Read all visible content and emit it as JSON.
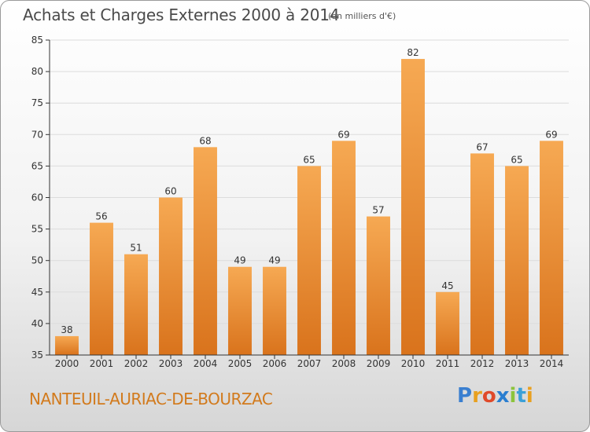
{
  "header": {
    "title": "Achats et Charges Externes 2000 à 2014",
    "unit": "(en milliers d'€)"
  },
  "footer": {
    "place": "NANTEUIL-AURIAC-DE-BOURZAC",
    "logo": {
      "text": "Proxiti",
      "letters": [
        "P",
        "r",
        "o",
        "x",
        "i",
        "t",
        "i"
      ],
      "colors": [
        "#3a7fd0",
        "#e8a020",
        "#e04a2a",
        "#2a7ed0",
        "#8cc43c",
        "#3aa0d8",
        "#e8a020"
      ]
    }
  },
  "colors": {
    "bar_light": "#f6a953",
    "bar_dark": "#d9731c",
    "grid": "#dcdcdc",
    "axis": "#333333",
    "text": "#333333"
  },
  "chart_data": {
    "type": "bar",
    "categories": [
      "2000",
      "2001",
      "2002",
      "2003",
      "2004",
      "2005",
      "2006",
      "2007",
      "2008",
      "2009",
      "2010",
      "2011",
      "2012",
      "2013",
      "2014"
    ],
    "values": [
      38,
      56,
      51,
      60,
      68,
      49,
      49,
      65,
      69,
      57,
      82,
      45,
      67,
      65,
      69
    ],
    "value_labels": [
      "38",
      "56",
      "51",
      "60",
      "68",
      "49",
      "49",
      "65",
      "69",
      "57",
      "82",
      "45",
      "67",
      "65",
      "69"
    ],
    "yticks": [
      35,
      40,
      45,
      50,
      55,
      60,
      65,
      70,
      75,
      80,
      85
    ],
    "ytick_labels": [
      "35",
      "40",
      "45",
      "50",
      "55",
      "60",
      "65",
      "70",
      "75",
      "80",
      "85"
    ],
    "ylim": [
      35,
      85
    ],
    "grid": true
  }
}
